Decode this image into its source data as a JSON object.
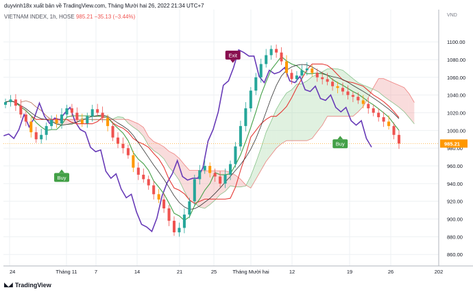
{
  "header": {
    "publisher": "duyvinh18x xuất bản về TradingView.com, Tháng Mười hai 26, 2022 21:34 UTC+7",
    "symbol": "VIETNAM INDEX, 1h, HOSE",
    "last": "985.21",
    "change": "−35.13 (−3.44%)"
  },
  "footer": {
    "brand": "TradingView",
    "logo_icon": "tradingview-logo-icon"
  },
  "colors": {
    "candle_up": "#26a69a",
    "candle_down": "#ef5350",
    "candle_orange": "#ff9800",
    "price_line": "#673ab7",
    "base_line": "#e53935",
    "conversion_line": "#43a047",
    "lagging_line": "#333333",
    "cloud_green": "#a5d6a7",
    "cloud_red": "#ef9a9a",
    "buy_marker": "#43a047",
    "exit_marker": "#880e4f",
    "price_tag": "#ff9800"
  },
  "chart_data": {
    "type": "candlestick",
    "currency_label": "VND",
    "y_ticks": [
      860,
      880,
      900,
      920,
      940,
      960,
      980,
      1000,
      1020,
      1040,
      1060,
      1080,
      1100
    ],
    "ylim": [
      847,
      1121
    ],
    "x_ticks": [
      "24",
      "Tháng 11",
      "7",
      "14",
      "21",
      "25",
      "Tháng Mười hai",
      "12",
      "19",
      "26",
      "202"
    ],
    "last_price_label": "985.21",
    "markers": [
      {
        "label": "Buy",
        "x_pos": 11,
        "price": 952
      },
      {
        "label": "Exit",
        "x_pos": 44.5,
        "price": 1077
      },
      {
        "label": "Buy",
        "x_pos": 65.5,
        "price": 990
      }
    ],
    "closes": [
      1032,
      1035,
      1028,
      1018,
      1010,
      998,
      990,
      995,
      1005,
      1012,
      1008,
      1018,
      1025,
      1020,
      1012,
      1008,
      1016,
      1024,
      1020,
      1014,
      1005,
      992,
      985,
      980,
      972,
      958,
      950,
      945,
      938,
      928,
      922,
      912,
      898,
      885,
      890,
      905,
      920,
      945,
      955,
      960,
      952,
      948,
      940,
      950,
      962,
      982,
      1005,
      1025,
      1045,
      1060,
      1075,
      1085,
      1092,
      1088,
      1078,
      1065,
      1058,
      1062,
      1068,
      1070,
      1065,
      1060,
      1058,
      1055,
      1050,
      1048,
      1044,
      1040,
      1038,
      1034,
      1030,
      1025,
      1020,
      1015,
      1010,
      1005,
      995,
      985.21
    ]
  }
}
